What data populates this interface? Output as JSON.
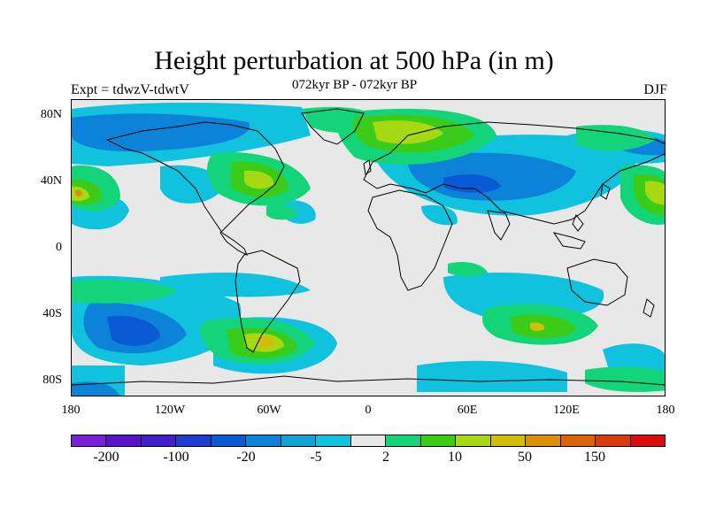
{
  "title": "Height perturbation at 500 hPa (in m)",
  "subtitle": "072kyr BP - 072kyr BP",
  "experiment": "Expt = tdwzV-tdwtV",
  "season": "DJF",
  "latitude_labels": [
    "80N",
    "40N",
    "0",
    "40S",
    "80S"
  ],
  "longitude_labels": [
    "180",
    "120W",
    "60W",
    "0",
    "60E",
    "120E",
    "180"
  ],
  "colorbar": {
    "labels": [
      "-200",
      "-100",
      "-20",
      "-5",
      "2",
      "10",
      "50",
      "150"
    ],
    "colors": [
      "#7a1fd8",
      "#5a12c8",
      "#4020c8",
      "#1e3cd0",
      "#0a5ad6",
      "#0c82d8",
      "#12a2d8",
      "#10c2de",
      "#e8e8e8",
      "#14d47a",
      "#3acc18",
      "#a6d814",
      "#d4bc0a",
      "#dc9008",
      "#dc6408",
      "#d83c0c",
      "#dc0c0c"
    ]
  },
  "map": {
    "background_color": "#e8e8e8",
    "coastline_color": "#000000"
  }
}
